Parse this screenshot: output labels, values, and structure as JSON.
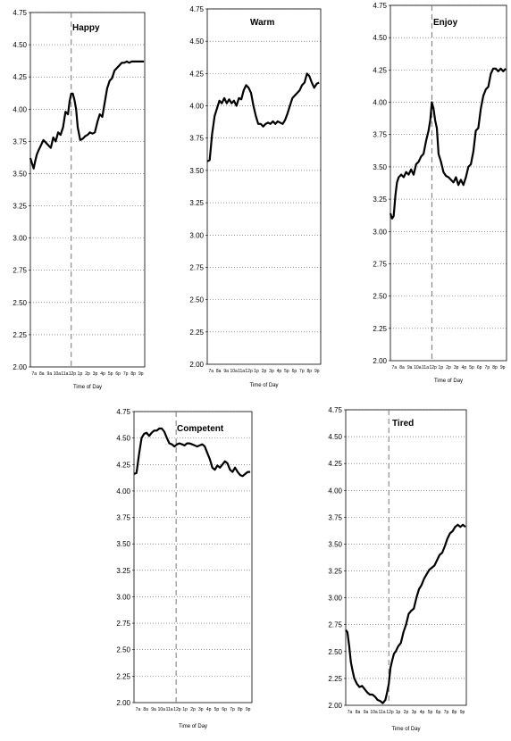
{
  "chart_data": [
    {
      "type": "line",
      "title": "Happy",
      "xlabel": "Time of Day",
      "ylim": [
        2.0,
        4.75
      ],
      "yticks": [
        "2.00",
        "2.25",
        "2.50",
        "2.75",
        "3.00",
        "3.25",
        "3.50",
        "3.75",
        "4.00",
        "4.25",
        "4.50",
        "4.75"
      ],
      "xticks": [
        "7a",
        "8a",
        "9a",
        "10a",
        "11a",
        "12p",
        "1p",
        "2p",
        "3p",
        "4p",
        "5p",
        "6p",
        "7p",
        "8p",
        "9p"
      ],
      "grid": true,
      "noon_marker": true,
      "x": [
        7.0,
        7.2,
        7.4,
        7.6,
        7.8,
        8.0,
        8.3,
        8.6,
        8.9,
        9.2,
        9.5,
        9.8,
        10.1,
        10.4,
        10.7,
        11.0,
        11.3,
        11.6,
        11.8,
        12.0,
        12.2,
        12.4,
        12.6,
        12.8,
        13.1,
        13.4,
        13.7,
        14.0,
        14.3,
        14.6,
        14.9,
        15.2,
        15.5,
        15.8,
        16.1,
        16.4,
        16.7,
        17.0,
        17.3,
        17.6,
        17.9,
        18.2,
        18.5,
        18.8,
        19.1,
        19.4,
        19.7,
        20.0,
        20.3,
        20.6,
        20.9
      ],
      "y": [
        3.62,
        3.58,
        3.54,
        3.6,
        3.65,
        3.68,
        3.72,
        3.76,
        3.74,
        3.72,
        3.7,
        3.78,
        3.75,
        3.82,
        3.8,
        3.86,
        3.98,
        3.96,
        4.06,
        4.12,
        4.12,
        4.07,
        4.0,
        3.86,
        3.76,
        3.77,
        3.79,
        3.8,
        3.82,
        3.81,
        3.82,
        3.9,
        3.96,
        3.94,
        4.05,
        4.16,
        4.22,
        4.24,
        4.3,
        4.32,
        4.34,
        4.36,
        4.36,
        4.37,
        4.36,
        4.37,
        4.37,
        4.37,
        4.37,
        4.37,
        4.37
      ]
    },
    {
      "type": "line",
      "title": "Warm",
      "xlabel": "Time of Day",
      "ylim": [
        2.0,
        4.75
      ],
      "yticks": [
        "2.00",
        "2.25",
        "2.50",
        "2.75",
        "3.00",
        "3.25",
        "3.50",
        "3.75",
        "4.00",
        "4.25",
        "4.50",
        "4.75"
      ],
      "xticks": [
        "7a",
        "8a",
        "9a",
        "10a",
        "11a",
        "12p",
        "1p",
        "2p",
        "3p",
        "4p",
        "5p",
        "6p",
        "7p",
        "8p",
        "9p"
      ],
      "grid": true,
      "noon_marker": false,
      "x": [
        7.0,
        7.3,
        7.6,
        7.9,
        8.2,
        8.5,
        8.8,
        9.1,
        9.4,
        9.7,
        10.0,
        10.3,
        10.6,
        10.9,
        11.2,
        11.5,
        11.8,
        12.1,
        12.4,
        12.7,
        13.0,
        13.3,
        13.6,
        13.9,
        14.2,
        14.5,
        14.8,
        15.1,
        15.4,
        15.7,
        16.0,
        16.3,
        16.6,
        16.9,
        17.2,
        17.5,
        17.8,
        18.1,
        18.4,
        18.7,
        19.0,
        19.3,
        19.6,
        19.9,
        20.2,
        20.5,
        20.8
      ],
      "y": [
        3.57,
        3.58,
        3.78,
        3.92,
        3.98,
        4.04,
        4.02,
        4.06,
        4.02,
        4.05,
        4.02,
        4.04,
        4.0,
        4.06,
        4.05,
        4.12,
        4.16,
        4.14,
        4.1,
        4.0,
        3.92,
        3.86,
        3.86,
        3.84,
        3.86,
        3.87,
        3.86,
        3.88,
        3.86,
        3.88,
        3.87,
        3.86,
        3.89,
        3.94,
        4.0,
        4.06,
        4.08,
        4.1,
        4.12,
        4.16,
        4.18,
        4.25,
        4.23,
        4.18,
        4.14,
        4.17,
        4.18
      ]
    },
    {
      "type": "line",
      "title": "Enjoy",
      "xlabel": "Time of Day",
      "ylim": [
        2.0,
        4.75
      ],
      "yticks": [
        "2.00",
        "2.25",
        "2.50",
        "2.75",
        "3.00",
        "3.25",
        "3.50",
        "3.75",
        "4.00",
        "4.25",
        "4.50",
        "4.75"
      ],
      "xticks": [
        "7a",
        "8a",
        "9a",
        "10a",
        "11a",
        "12p",
        "1p",
        "2p",
        "3p",
        "4p",
        "5p",
        "6p",
        "7p",
        "8p",
        "9p"
      ],
      "grid": true,
      "noon_marker": true,
      "x": [
        7.0,
        7.2,
        7.4,
        7.6,
        7.8,
        8.0,
        8.3,
        8.6,
        8.9,
        9.2,
        9.5,
        9.8,
        10.1,
        10.4,
        10.7,
        11.0,
        11.3,
        11.6,
        11.8,
        12.0,
        12.2,
        12.4,
        12.6,
        12.8,
        13.1,
        13.4,
        13.7,
        14.0,
        14.3,
        14.6,
        14.9,
        15.2,
        15.5,
        15.8,
        16.1,
        16.4,
        16.7,
        17.0,
        17.3,
        17.6,
        17.9,
        18.2,
        18.5,
        18.8,
        19.1,
        19.4,
        19.7,
        20.0,
        20.3,
        20.6,
        20.9
      ],
      "y": [
        3.14,
        3.1,
        3.12,
        3.28,
        3.38,
        3.42,
        3.44,
        3.42,
        3.46,
        3.44,
        3.48,
        3.44,
        3.52,
        3.54,
        3.58,
        3.6,
        3.7,
        3.78,
        3.86,
        4.0,
        3.95,
        3.86,
        3.8,
        3.6,
        3.54,
        3.46,
        3.43,
        3.42,
        3.4,
        3.38,
        3.42,
        3.36,
        3.4,
        3.36,
        3.42,
        3.5,
        3.52,
        3.62,
        3.78,
        3.8,
        3.95,
        4.05,
        4.1,
        4.12,
        4.22,
        4.26,
        4.26,
        4.24,
        4.26,
        4.24,
        4.26
      ]
    },
    {
      "type": "line",
      "title": "Competent",
      "xlabel": "Time of Day",
      "ylim": [
        2.0,
        4.75
      ],
      "yticks": [
        "2.00",
        "2.25",
        "2.50",
        "2.75",
        "3.00",
        "3.25",
        "3.50",
        "3.75",
        "4.00",
        "4.25",
        "4.50",
        "4.75"
      ],
      "xticks": [
        "7a",
        "8a",
        "9a",
        "10a",
        "11a",
        "12p",
        "1p",
        "2p",
        "3p",
        "4p",
        "5p",
        "6p",
        "7p",
        "8p",
        "9p"
      ],
      "grid": true,
      "noon_marker": true,
      "x": [
        7.0,
        7.3,
        7.6,
        7.9,
        8.2,
        8.5,
        8.8,
        9.1,
        9.4,
        9.7,
        10.0,
        10.3,
        10.6,
        10.9,
        11.2,
        11.5,
        11.8,
        12.1,
        12.4,
        12.7,
        13.0,
        13.3,
        13.6,
        13.9,
        14.2,
        14.5,
        14.8,
        15.1,
        15.4,
        15.7,
        16.0,
        16.3,
        16.6,
        16.9,
        17.2,
        17.5,
        17.8,
        18.1,
        18.4,
        18.7,
        19.0,
        19.3,
        19.6,
        19.9,
        20.2,
        20.5,
        20.8
      ],
      "y": [
        4.16,
        4.17,
        4.35,
        4.5,
        4.54,
        4.55,
        4.52,
        4.55,
        4.57,
        4.57,
        4.59,
        4.59,
        4.56,
        4.5,
        4.45,
        4.44,
        4.42,
        4.44,
        4.45,
        4.44,
        4.43,
        4.45,
        4.45,
        4.44,
        4.43,
        4.42,
        4.43,
        4.44,
        4.42,
        4.36,
        4.3,
        4.22,
        4.2,
        4.24,
        4.22,
        4.25,
        4.28,
        4.26,
        4.2,
        4.18,
        4.22,
        4.18,
        4.15,
        4.14,
        4.16,
        4.18,
        4.18
      ]
    },
    {
      "type": "line",
      "title": "Tired",
      "xlabel": "Time of Day",
      "ylim": [
        2.0,
        4.75
      ],
      "yticks": [
        "2.00",
        "2.25",
        "2.50",
        "2.75",
        "3.00",
        "3.25",
        "3.50",
        "3.75",
        "4.00",
        "4.25",
        "4.50",
        "4.75"
      ],
      "xticks": [
        "7a",
        "8a",
        "9a",
        "10a",
        "11a",
        "12p",
        "1p",
        "2p",
        "3p",
        "4p",
        "5p",
        "6p",
        "7p",
        "8p",
        "9p"
      ],
      "grid": true,
      "noon_marker": true,
      "x": [
        7.0,
        7.2,
        7.4,
        7.6,
        7.8,
        8.0,
        8.3,
        8.6,
        8.9,
        9.2,
        9.5,
        9.8,
        10.1,
        10.4,
        10.7,
        11.0,
        11.3,
        11.6,
        11.8,
        12.0,
        12.2,
        12.4,
        12.6,
        12.8,
        13.1,
        13.4,
        13.7,
        14.0,
        14.3,
        14.6,
        14.9,
        15.2,
        15.5,
        15.8,
        16.1,
        16.4,
        16.7,
        17.0,
        17.3,
        17.6,
        17.9,
        18.2,
        18.5,
        18.8,
        19.1,
        19.4,
        19.7,
        20.0,
        20.3,
        20.6,
        20.9
      ],
      "y": [
        2.7,
        2.68,
        2.55,
        2.4,
        2.32,
        2.25,
        2.2,
        2.17,
        2.18,
        2.15,
        2.12,
        2.1,
        2.1,
        2.08,
        2.05,
        2.04,
        2.02,
        2.05,
        2.12,
        2.2,
        2.35,
        2.42,
        2.48,
        2.5,
        2.55,
        2.58,
        2.68,
        2.75,
        2.85,
        2.88,
        2.9,
        3.0,
        3.08,
        3.12,
        3.18,
        3.22,
        3.26,
        3.28,
        3.3,
        3.35,
        3.4,
        3.42,
        3.48,
        3.55,
        3.6,
        3.62,
        3.66,
        3.68,
        3.66,
        3.68,
        3.66
      ]
    }
  ]
}
